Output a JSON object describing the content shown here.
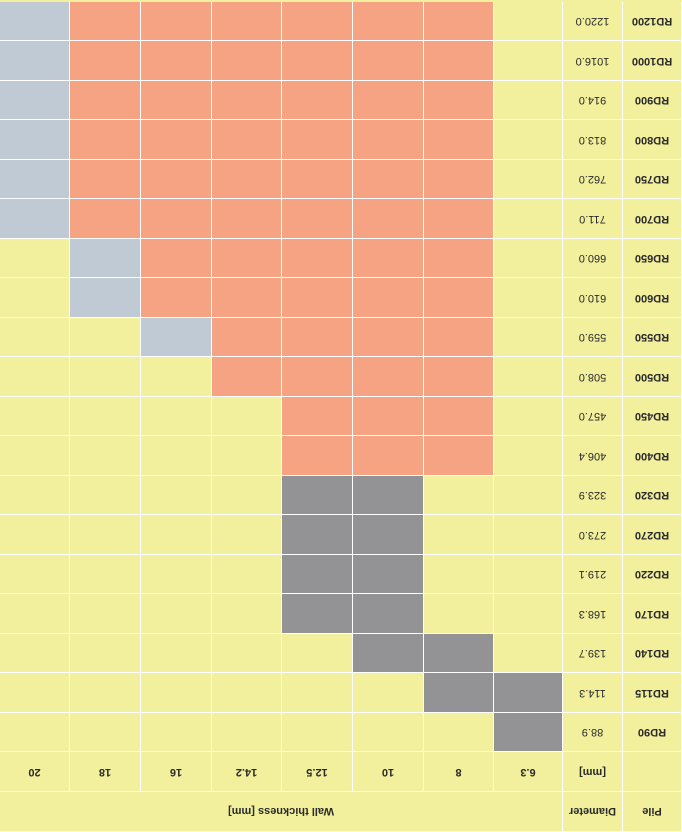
{
  "header": {
    "pile": "Pile",
    "diameter": "Diameter",
    "diameter_unit": "[mm]",
    "wall_thickness": "Wall thickness [mm]"
  },
  "thicknesses": [
    "6.3",
    "8",
    "10",
    "12.5",
    "14.2",
    "16",
    "18",
    "20"
  ],
  "legend_colors": {
    "none": "#f2ef9d",
    "orange": "#f5a383",
    "blue": "#bfcad4",
    "gray": "#939396"
  },
  "rows": [
    {
      "pile": "RD90",
      "diameter": "88.9",
      "cells": [
        "g",
        "y",
        "y",
        "y",
        "y",
        "y",
        "y",
        "y"
      ]
    },
    {
      "pile": "RD115",
      "diameter": "114.3",
      "cells": [
        "g",
        "g",
        "y",
        "y",
        "y",
        "y",
        "y",
        "y"
      ]
    },
    {
      "pile": "RD140",
      "diameter": "139.7",
      "cells": [
        "y",
        "g",
        "g",
        "y",
        "y",
        "y",
        "y",
        "y"
      ]
    },
    {
      "pile": "RD170",
      "diameter": "168.3",
      "cells": [
        "y",
        "y",
        "g",
        "g",
        "y",
        "y",
        "y",
        "y"
      ]
    },
    {
      "pile": "RD220",
      "diameter": "219.1",
      "cells": [
        "y",
        "y",
        "g",
        "g",
        "y",
        "y",
        "y",
        "y"
      ]
    },
    {
      "pile": "RD270",
      "diameter": "273.0",
      "cells": [
        "y",
        "y",
        "g",
        "g",
        "y",
        "y",
        "y",
        "y"
      ]
    },
    {
      "pile": "RD320",
      "diameter": "323.9",
      "cells": [
        "y",
        "y",
        "g",
        "g",
        "y",
        "y",
        "y",
        "y"
      ]
    },
    {
      "pile": "RD400",
      "diameter": "406.4",
      "cells": [
        "y",
        "o",
        "o",
        "o",
        "y",
        "y",
        "y",
        "y"
      ]
    },
    {
      "pile": "RD450",
      "diameter": "457.0",
      "cells": [
        "y",
        "o",
        "o",
        "o",
        "y",
        "y",
        "y",
        "y"
      ]
    },
    {
      "pile": "RD500",
      "diameter": "508.0",
      "cells": [
        "y",
        "o",
        "o",
        "o",
        "o",
        "y",
        "y",
        "y"
      ]
    },
    {
      "pile": "RD550",
      "diameter": "559.0",
      "cells": [
        "y",
        "o",
        "o",
        "o",
        "o",
        "b",
        "y",
        "y"
      ]
    },
    {
      "pile": "RD600",
      "diameter": "610.0",
      "cells": [
        "y",
        "o",
        "o",
        "o",
        "o",
        "o",
        "b",
        "y"
      ]
    },
    {
      "pile": "RD650",
      "diameter": "660.0",
      "cells": [
        "y",
        "o",
        "o",
        "o",
        "o",
        "o",
        "b",
        "y"
      ]
    },
    {
      "pile": "RD700",
      "diameter": "711.0",
      "cells": [
        "y",
        "o",
        "o",
        "o",
        "o",
        "o",
        "o",
        "b"
      ]
    },
    {
      "pile": "RD750",
      "diameter": "762.0",
      "cells": [
        "y",
        "o",
        "o",
        "o",
        "o",
        "o",
        "o",
        "b"
      ]
    },
    {
      "pile": "RD800",
      "diameter": "813.0",
      "cells": [
        "y",
        "o",
        "o",
        "o",
        "o",
        "o",
        "o",
        "b"
      ]
    },
    {
      "pile": "RD900",
      "diameter": "914.0",
      "cells": [
        "y",
        "o",
        "o",
        "o",
        "o",
        "o",
        "o",
        "b"
      ]
    },
    {
      "pile": "RD1000",
      "diameter": "1016.0",
      "cells": [
        "y",
        "o",
        "o",
        "o",
        "o",
        "o",
        "o",
        "b"
      ]
    },
    {
      "pile": "RD1200",
      "diameter": "1220.0",
      "cells": [
        "y",
        "o",
        "o",
        "o",
        "o",
        "o",
        "o",
        "b"
      ]
    }
  ]
}
